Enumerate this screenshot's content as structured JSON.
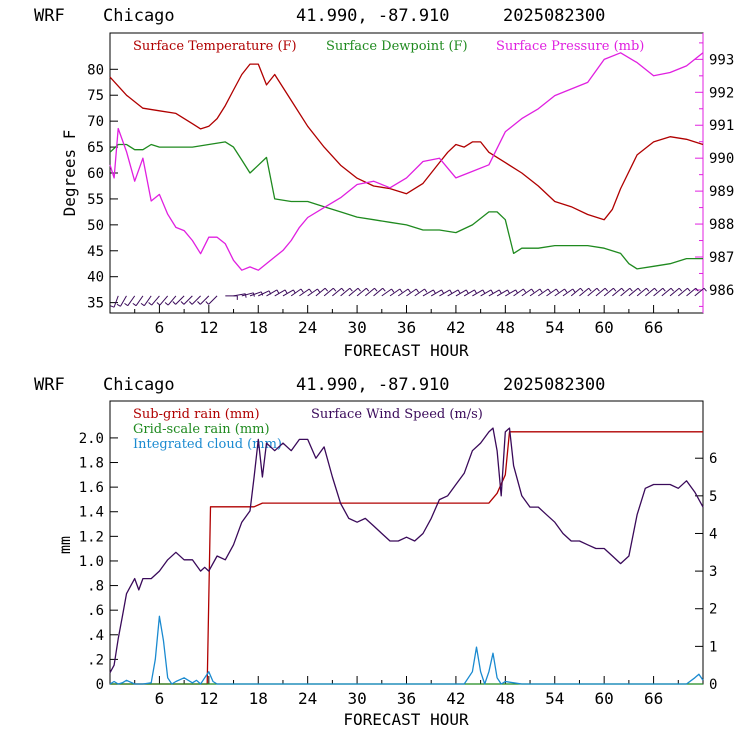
{
  "colors": {
    "temperature": "#b00000",
    "dewpoint": "#1f8a1f",
    "pressure": "#e020e0",
    "subgrid_rain": "#b00000",
    "gridscale_rain": "#1f8a1f",
    "cloud": "#1a8ad0",
    "wind": "#3a0a5a",
    "barbs": "#3a0a5a"
  },
  "chart_data": [
    {
      "type": "line",
      "header": {
        "model": "WRF",
        "site": "Chicago",
        "coords": "41.990, -87.910",
        "date": "2025082300"
      },
      "xlabel": "FORECAST HOUR",
      "ylabel": "Degrees F",
      "xlim": [
        0,
        72
      ],
      "x_ticks": [
        "6",
        "12",
        "18",
        "24",
        "30",
        "36",
        "42",
        "48",
        "54",
        "60",
        "66"
      ],
      "x_tick_values": [
        6,
        12,
        18,
        24,
        30,
        36,
        42,
        48,
        54,
        60,
        66
      ],
      "ylim": [
        33,
        87
      ],
      "y_ticks": [
        "35",
        "40",
        "45",
        "50",
        "55",
        "60",
        "65",
        "70",
        "75",
        "80"
      ],
      "y2lim": [
        985.3,
        993.8
      ],
      "y2_ticks": [
        "986",
        "987",
        "988",
        "989",
        "990",
        "991",
        "992",
        "993"
      ],
      "legend": [
        "Surface Temperature (F)",
        "Surface Dewpoint (F)",
        "Surface Pressure (mb)"
      ],
      "series": [
        {
          "name": "Surface Temperature (F)",
          "axis": "left",
          "x": [
            0,
            2,
            4,
            6,
            8,
            10,
            11,
            12,
            13,
            14,
            15,
            16,
            17,
            18,
            19,
            20,
            22,
            24,
            26,
            28,
            30,
            32,
            34,
            36,
            38,
            40,
            41,
            42,
            43,
            44,
            45,
            46,
            48,
            50,
            52,
            54,
            56,
            58,
            60,
            61,
            62,
            64,
            66,
            68,
            70,
            72
          ],
          "y": [
            78.5,
            75,
            72.5,
            72,
            71.5,
            69.5,
            68.5,
            69,
            70.5,
            73,
            76,
            79,
            81,
            81,
            77,
            79,
            74,
            69,
            65,
            61.5,
            59,
            57.5,
            57,
            56,
            58,
            62,
            64,
            65.5,
            65,
            66,
            66,
            64,
            62,
            60,
            57.5,
            54.5,
            53.5,
            52,
            51,
            53,
            57,
            63.5,
            66,
            67,
            66.5,
            65.5
          ]
        },
        {
          "name": "Surface Dewpoint (F)",
          "axis": "left",
          "x": [
            0,
            1,
            2,
            3,
            4,
            5,
            6,
            8,
            10,
            12,
            14,
            15,
            16,
            17,
            18,
            19,
            20,
            22,
            24,
            26,
            28,
            30,
            32,
            34,
            36,
            38,
            40,
            42,
            44,
            46,
            47,
            48,
            49,
            50,
            52,
            54,
            56,
            58,
            60,
            62,
            63,
            64,
            66,
            68,
            70,
            72
          ],
          "y": [
            64,
            65.5,
            65.5,
            64.5,
            64.5,
            65.5,
            65,
            65,
            65,
            65.5,
            66,
            65,
            62.5,
            60,
            61.5,
            63,
            55,
            54.5,
            54.5,
            53.5,
            52.5,
            51.5,
            51,
            50.5,
            50,
            49,
            49,
            48.5,
            50,
            52.5,
            52.5,
            51,
            44.5,
            45.5,
            45.5,
            46,
            46,
            46,
            45.5,
            44.5,
            42.5,
            41.5,
            42,
            42.5,
            43.5,
            43.5
          ]
        },
        {
          "name": "Surface Pressure (mb)",
          "axis": "right",
          "x": [
            0,
            0.5,
            1,
            2,
            3,
            4,
            5,
            6,
            7,
            8,
            9,
            10,
            11,
            12,
            13,
            14,
            15,
            16,
            17,
            18,
            19,
            20,
            21,
            22,
            23,
            24,
            26,
            28,
            30,
            32,
            34,
            36,
            38,
            40,
            42,
            44,
            46,
            48,
            50,
            52,
            54,
            56,
            58,
            60,
            62,
            64,
            66,
            68,
            70,
            72
          ],
          "y": [
            989.8,
            989.4,
            990.9,
            990.2,
            989.3,
            990,
            988.7,
            988.9,
            988.3,
            987.9,
            987.8,
            987.5,
            987.1,
            987.6,
            987.6,
            987.4,
            986.9,
            986.6,
            986.7,
            986.6,
            986.8,
            987,
            987.2,
            987.5,
            987.9,
            988.2,
            988.5,
            988.8,
            989.2,
            989.3,
            989.1,
            989.4,
            989.9,
            990,
            989.4,
            989.6,
            989.8,
            990.8,
            991.2,
            991.5,
            991.9,
            992.1,
            992.3,
            993,
            993.2,
            992.9,
            992.5,
            992.6,
            992.8,
            993.2
          ]
        }
      ],
      "wind_barbs": {
        "x": [
          1,
          2,
          3,
          4,
          5,
          6,
          7,
          8,
          9,
          10,
          11,
          12,
          13,
          14,
          15,
          16,
          17,
          18,
          19,
          20,
          21,
          22,
          23,
          24,
          25,
          26,
          27,
          28,
          29,
          30,
          31,
          32,
          33,
          34,
          35,
          36,
          37,
          38,
          39,
          40,
          41,
          42,
          43,
          44,
          45,
          46,
          47,
          48,
          49,
          50,
          51,
          52,
          53,
          54,
          55,
          56,
          57,
          58,
          59,
          60,
          61,
          62,
          63,
          64,
          65,
          66,
          67,
          68,
          69,
          70,
          71
        ],
        "direction_deg": [
          200,
          210,
          215,
          215,
          215,
          220,
          220,
          220,
          225,
          225,
          225,
          225,
          225,
          90,
          80,
          75,
          70,
          65,
          60,
          60,
          60,
          55,
          55,
          55,
          50,
          50,
          50,
          50,
          50,
          50,
          50,
          50,
          55,
          55,
          55,
          55,
          55,
          60,
          60,
          60,
          60,
          60,
          60,
          60,
          60,
          60,
          60,
          60,
          55,
          55,
          55,
          55,
          55,
          55,
          55,
          50,
          50,
          50,
          50,
          50,
          50,
          50,
          50,
          50,
          50,
          50,
          50,
          50,
          50,
          50,
          50
        ]
      }
    },
    {
      "type": "line",
      "header": {
        "model": "WRF",
        "site": "Chicago",
        "coords": "41.990, -87.910",
        "date": "2025082300"
      },
      "xlabel": "FORECAST HOUR",
      "ylabel": "mm",
      "xlim": [
        0,
        72
      ],
      "x_ticks": [
        "6",
        "12",
        "18",
        "24",
        "30",
        "36",
        "42",
        "48",
        "54",
        "60",
        "66"
      ],
      "x_tick_values": [
        6,
        12,
        18,
        24,
        30,
        36,
        42,
        48,
        54,
        60,
        66
      ],
      "ylim": [
        0,
        2.3
      ],
      "y_ticks": [
        "0",
        ".2",
        ".4",
        ".6",
        ".8",
        "1.0",
        "1.2",
        "1.4",
        "1.6",
        "1.8",
        "2.0"
      ],
      "y_tick_values": [
        0,
        0.2,
        0.4,
        0.6,
        0.8,
        1.0,
        1.2,
        1.4,
        1.6,
        1.8,
        2.0
      ],
      "y2lim": [
        0,
        7.52
      ],
      "y2_ticks": [
        "0",
        "1",
        "2",
        "3",
        "4",
        "5",
        "6"
      ],
      "legend": [
        "Sub-grid rain (mm)",
        "Grid-scale rain (mm)",
        "Integrated cloud (mm)",
        "Surface Wind Speed (m/s)"
      ],
      "series": [
        {
          "name": "Sub-grid rain (mm)",
          "axis": "left",
          "x": [
            0,
            11.8,
            12.2,
            17.5,
            18.5,
            46,
            47,
            48,
            48.5,
            72
          ],
          "y": [
            0,
            0,
            1.44,
            1.44,
            1.47,
            1.47,
            1.55,
            1.7,
            2.05,
            2.05
          ]
        },
        {
          "name": "Grid-scale rain (mm)",
          "axis": "left",
          "x": [
            0,
            72
          ],
          "y": [
            0,
            0
          ]
        },
        {
          "name": "Integrated cloud (mm)",
          "axis": "left",
          "x": [
            0,
            0.5,
            1,
            1.5,
            2,
            3,
            4,
            5,
            5.5,
            6,
            6.5,
            7,
            7.5,
            8,
            9,
            10,
            10.5,
            11,
            11.5,
            12,
            12.5,
            13,
            20,
            30,
            40,
            43,
            44,
            44.5,
            45,
            45.5,
            46,
            46.5,
            47,
            47.5,
            48,
            50,
            60,
            70,
            71,
            71.5,
            72
          ],
          "y": [
            0,
            0.02,
            0,
            0.01,
            0.03,
            0,
            0,
            0.01,
            0.2,
            0.55,
            0.35,
            0.05,
            0,
            0.02,
            0.05,
            0.01,
            0.03,
            0,
            0.05,
            0.1,
            0.02,
            0,
            0,
            0,
            0,
            0,
            0.1,
            0.3,
            0.1,
            0,
            0.1,
            0.25,
            0.05,
            0,
            0.02,
            0,
            0,
            0,
            0.05,
            0.08,
            0.03
          ]
        },
        {
          "name": "Surface Wind Speed (m/s)",
          "axis": "right",
          "x": [
            0,
            0.5,
            1,
            1.5,
            2,
            3,
            3.5,
            4,
            5,
            6,
            7,
            8,
            9,
            10,
            11,
            11.5,
            12,
            13,
            14,
            15,
            16,
            17,
            17.5,
            18,
            18.5,
            19,
            20,
            21,
            22,
            23,
            24,
            25,
            26,
            27,
            28,
            29,
            30,
            31,
            32,
            33,
            34,
            35,
            36,
            37,
            38,
            39,
            40,
            41,
            42,
            43,
            44,
            45,
            46,
            46.5,
            47,
            47.5,
            48,
            48.5,
            49,
            50,
            51,
            52,
            53,
            54,
            55,
            56,
            57,
            58,
            59,
            60,
            61,
            62,
            63,
            64,
            65,
            66,
            67,
            68,
            69,
            70,
            71,
            72
          ],
          "y": [
            0.3,
            0.5,
            1.2,
            1.8,
            2.4,
            2.8,
            2.5,
            2.8,
            2.8,
            3,
            3.3,
            3.5,
            3.3,
            3.3,
            3,
            3.1,
            3,
            3.4,
            3.3,
            3.7,
            4.3,
            4.6,
            5.5,
            6.5,
            5.5,
            6.4,
            6.2,
            6.4,
            6.2,
            6.5,
            6.5,
            6,
            6.3,
            5.5,
            4.8,
            4.4,
            4.3,
            4.4,
            4.2,
            4,
            3.8,
            3.8,
            3.9,
            3.8,
            4,
            4.4,
            4.9,
            5,
            5.3,
            5.6,
            6.2,
            6.4,
            6.7,
            6.8,
            6.2,
            5,
            6.7,
            6.8,
            5.8,
            5,
            4.7,
            4.7,
            4.5,
            4.3,
            4,
            3.8,
            3.8,
            3.7,
            3.6,
            3.6,
            3.4,
            3.2,
            3.4,
            4.5,
            5.2,
            5.3,
            5.3,
            5.3,
            5.2,
            5.4,
            5.1,
            4.7
          ]
        }
      ]
    }
  ]
}
